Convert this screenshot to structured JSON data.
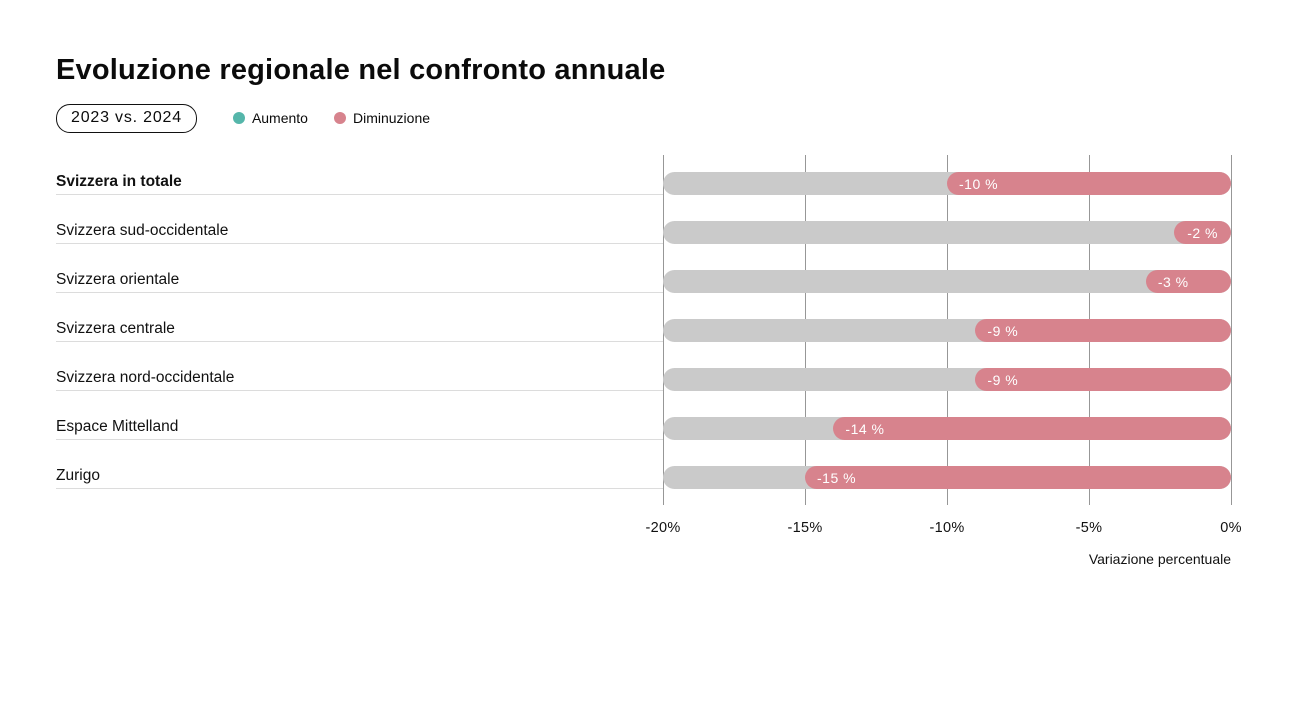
{
  "header": {
    "title": "Evoluzione regionale nel confronto annuale",
    "badge": "2023 vs. 2024"
  },
  "legend": {
    "increase_label": "Aumento",
    "decrease_label": "Diminuzione"
  },
  "colors": {
    "increase": "#55b6aa",
    "decrease": "#d7838d",
    "track": "#cacaca",
    "gridline": "#979797"
  },
  "chart_data": {
    "type": "bar",
    "orientation": "horizontal",
    "title": "Evoluzione regionale nel confronto annuale",
    "subtitle": "2023 vs. 2024",
    "categories": [
      "Svizzera in totale",
      "Svizzera sud-occidentale",
      "Svizzera orientale",
      "Svizzera centrale",
      "Svizzera nord-occidentale",
      "Espace Mittelland",
      "Zurigo"
    ],
    "values": [
      -10,
      -2,
      -3,
      -9,
      -9,
      -14,
      -15
    ],
    "bar_labels": [
      "-10 %",
      "-2 %",
      "-3 %",
      "-9 %",
      "-9 %",
      "-14 %",
      "-15 %"
    ],
    "emphasized_row": 0,
    "xlabel": "Variazione percentuale",
    "xlim": [
      -20,
      0
    ],
    "xticks": [
      "-20%",
      "-15%",
      "-10%",
      "-5%",
      "0%"
    ],
    "legend": [
      "Aumento",
      "Diminuzione"
    ],
    "legend_position": "top",
    "grid": true
  },
  "axis": {
    "caption": "Variazione percentuale"
  }
}
